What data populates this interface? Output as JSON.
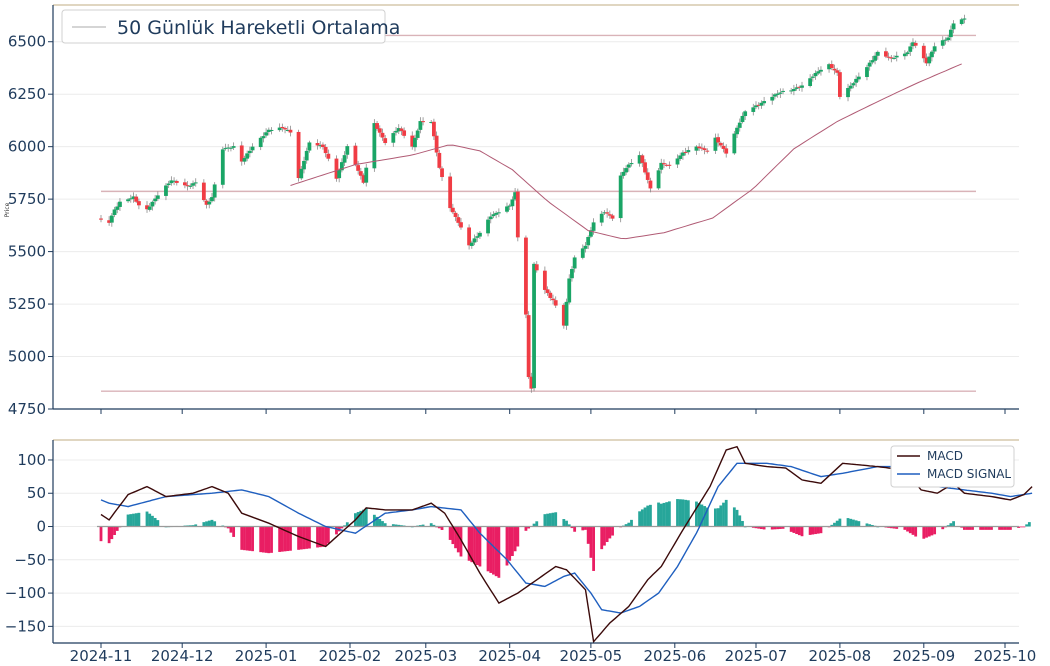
{
  "chart_data": [
    {
      "type": "candlestick",
      "ylabel": "Price",
      "ylim": [
        4750,
        6675
      ],
      "yticks": [
        4750,
        5000,
        5250,
        5500,
        5750,
        6000,
        6250,
        6500
      ],
      "legend": {
        "placement": "top-left",
        "label": "50 Günlük Hareketli Ortalama"
      },
      "grid": true,
      "colors": {
        "up": "#1aa566",
        "down": "#f03c44",
        "ma": "#b05a74",
        "hline": "#d9b3b8"
      },
      "horizontal_lines": [
        6530,
        5787,
        4835
      ],
      "price_anchors": [
        [
          "2024-11-01",
          5650
        ],
        [
          "2024-11-04",
          5640
        ],
        [
          "2024-11-06",
          5700
        ],
        [
          "2024-11-08",
          5735
        ],
        [
          "2024-11-11",
          5750
        ],
        [
          "2024-11-13",
          5760
        ],
        [
          "2024-11-15",
          5720
        ],
        [
          "2024-11-18",
          5700
        ],
        [
          "2024-11-22",
          5770
        ],
        [
          "2024-11-27",
          5840
        ],
        [
          "2024-12-03",
          5810
        ],
        [
          "2024-12-06",
          5830
        ],
        [
          "2024-12-10",
          5720
        ],
        [
          "2024-12-12",
          5760
        ],
        [
          "2024-12-16",
          5990
        ],
        [
          "2024-12-20",
          6000
        ],
        [
          "2024-12-23",
          5930
        ],
        [
          "2024-12-27",
          6000
        ],
        [
          "2025-01-02",
          6080
        ],
        [
          "2025-01-07",
          6090
        ],
        [
          "2025-01-10",
          6070
        ],
        [
          "2025-01-13",
          5850
        ],
        [
          "2025-01-17",
          6020
        ],
        [
          "2025-01-22",
          6000
        ],
        [
          "2025-01-27",
          5850
        ],
        [
          "2025-01-31",
          6000
        ],
        [
          "2025-02-06",
          5830
        ],
        [
          "2025-02-10",
          6110
        ],
        [
          "2025-02-14",
          6020
        ],
        [
          "2025-02-19",
          6090
        ],
        [
          "2025-02-24",
          6000
        ],
        [
          "2025-02-27",
          6120
        ],
        [
          "2025-03-03",
          6120
        ],
        [
          "2025-03-06",
          5900
        ],
        [
          "2025-03-10",
          5710
        ],
        [
          "2025-03-13",
          5640
        ],
        [
          "2025-03-17",
          5530
        ],
        [
          "2025-03-21",
          5590
        ],
        [
          "2025-03-25",
          5670
        ],
        [
          "2025-03-28",
          5690
        ],
        [
          "2025-04-01",
          5720
        ],
        [
          "2025-04-03",
          5780
        ],
        [
          "2025-04-04",
          5570
        ],
        [
          "2025-04-07",
          5200
        ],
        [
          "2025-04-08",
          4900
        ],
        [
          "2025-04-09",
          4850
        ],
        [
          "2025-04-10",
          5440
        ],
        [
          "2025-04-14",
          5320
        ],
        [
          "2025-04-16",
          5280
        ],
        [
          "2025-04-17",
          5270
        ],
        [
          "2025-04-21",
          5150
        ],
        [
          "2025-04-23",
          5370
        ],
        [
          "2025-04-25",
          5470
        ],
        [
          "2025-04-29",
          5530
        ],
        [
          "2025-05-02",
          5640
        ],
        [
          "2025-05-06",
          5690
        ],
        [
          "2025-05-09",
          5660
        ],
        [
          "2025-05-12",
          5860
        ],
        [
          "2025-05-14",
          5900
        ],
        [
          "2025-05-19",
          5960
        ],
        [
          "2025-05-23",
          5800
        ],
        [
          "2025-05-27",
          5920
        ],
        [
          "2025-05-30",
          5910
        ],
        [
          "2025-06-04",
          5970
        ],
        [
          "2025-06-09",
          6000
        ],
        [
          "2025-06-13",
          5980
        ],
        [
          "2025-06-16",
          6040
        ],
        [
          "2025-06-20",
          5970
        ],
        [
          "2025-06-24",
          6090
        ],
        [
          "2025-06-27",
          6170
        ],
        [
          "2025-07-02",
          6200
        ],
        [
          "2025-07-07",
          6240
        ],
        [
          "2025-07-10",
          6260
        ],
        [
          "2025-07-14",
          6270
        ],
        [
          "2025-07-18",
          6290
        ],
        [
          "2025-07-24",
          6360
        ],
        [
          "2025-07-28",
          6390
        ],
        [
          "2025-07-31",
          6350
        ],
        [
          "2025-08-01",
          6240
        ],
        [
          "2025-08-05",
          6290
        ],
        [
          "2025-08-11",
          6380
        ],
        [
          "2025-08-15",
          6450
        ],
        [
          "2025-08-20",
          6420
        ],
        [
          "2025-08-26",
          6450
        ],
        [
          "2025-08-28",
          6500
        ],
        [
          "2025-09-02",
          6400
        ],
        [
          "2025-09-05",
          6480
        ],
        [
          "2025-09-10",
          6520
        ],
        [
          "2025-09-12",
          6590
        ],
        [
          "2025-09-16",
          6610
        ]
      ],
      "ma50_anchors": [
        [
          "2025-01-10",
          5815
        ],
        [
          "2025-02-03",
          5915
        ],
        [
          "2025-02-24",
          5960
        ],
        [
          "2025-03-10",
          6010
        ],
        [
          "2025-03-21",
          5980
        ],
        [
          "2025-04-02",
          5890
        ],
        [
          "2025-04-15",
          5740
        ],
        [
          "2025-04-30",
          5600
        ],
        [
          "2025-05-13",
          5560
        ],
        [
          "2025-05-28",
          5590
        ],
        [
          "2025-06-15",
          5660
        ],
        [
          "2025-06-30",
          5800
        ],
        [
          "2025-07-15",
          5990
        ],
        [
          "2025-07-31",
          6120
        ],
        [
          "2025-08-15",
          6215
        ],
        [
          "2025-08-29",
          6300
        ],
        [
          "2025-09-16",
          6400
        ]
      ]
    },
    {
      "type": "line+bar",
      "ylim": [
        -175,
        130
      ],
      "yticks": [
        -150,
        -100,
        -50,
        0,
        50,
        100
      ],
      "xticks": [
        "2024-11",
        "2024-12",
        "2025-01",
        "2025-02",
        "2025-03",
        "2025-04",
        "2025-05",
        "2025-06",
        "2025-07",
        "2025-08",
        "2025-09",
        "2025-10"
      ],
      "legend": {
        "placement": "top-right"
      },
      "grid": true,
      "series": [
        {
          "name": "MACD",
          "color": "#3b0a0a",
          "anchors": [
            [
              "2024-11-01",
              18
            ],
            [
              "2024-11-04",
              10
            ],
            [
              "2024-11-11",
              48
            ],
            [
              "2024-11-18",
              60
            ],
            [
              "2024-11-25",
              45
            ],
            [
              "2024-12-05",
              50
            ],
            [
              "2024-12-12",
              60
            ],
            [
              "2024-12-18",
              50
            ],
            [
              "2024-12-23",
              20
            ],
            [
              "2025-01-02",
              5
            ],
            [
              "2025-01-13",
              -15
            ],
            [
              "2025-01-23",
              -30
            ],
            [
              "2025-02-03",
              10
            ],
            [
              "2025-02-07",
              28
            ],
            [
              "2025-02-14",
              25
            ],
            [
              "2025-02-24",
              25
            ],
            [
              "2025-03-03",
              35
            ],
            [
              "2025-03-08",
              20
            ],
            [
              "2025-03-14",
              -20
            ],
            [
              "2025-03-21",
              -70
            ],
            [
              "2025-03-28",
              -115
            ],
            [
              "2025-04-04",
              -100
            ],
            [
              "2025-04-11",
              -80
            ],
            [
              "2025-04-18",
              -60
            ],
            [
              "2025-04-22",
              -65
            ],
            [
              "2025-04-29",
              -95
            ],
            [
              "2025-05-02",
              -173
            ],
            [
              "2025-05-08",
              -145
            ],
            [
              "2025-05-15",
              -120
            ],
            [
              "2025-05-22",
              -80
            ],
            [
              "2025-05-27",
              -60
            ],
            [
              "2025-06-04",
              -5
            ],
            [
              "2025-06-14",
              60
            ],
            [
              "2025-06-20",
              115
            ],
            [
              "2025-06-24",
              120
            ],
            [
              "2025-06-27",
              95
            ],
            [
              "2025-07-05",
              90
            ],
            [
              "2025-07-12",
              88
            ],
            [
              "2025-07-18",
              70
            ],
            [
              "2025-07-25",
              65
            ],
            [
              "2025-08-02",
              95
            ],
            [
              "2025-08-15",
              90
            ],
            [
              "2025-08-25",
              85
            ],
            [
              "2025-08-31",
              55
            ],
            [
              "2025-09-06",
              50
            ],
            [
              "2025-09-12",
              65
            ],
            [
              "2025-09-16",
              50
            ],
            [
              "2025-09-26",
              45
            ],
            [
              "2025-10-03",
              40
            ],
            [
              "2025-10-08",
              48
            ],
            [
              "2025-10-11",
              60
            ]
          ]
        },
        {
          "name": "MACD SIGNAL",
          "color": "#1f5fbf",
          "anchors": [
            [
              "2024-11-01",
              40
            ],
            [
              "2024-11-04",
              35
            ],
            [
              "2024-11-11",
              30
            ],
            [
              "2024-11-25",
              45
            ],
            [
              "2024-12-12",
              50
            ],
            [
              "2024-12-23",
              55
            ],
            [
              "2025-01-02",
              45
            ],
            [
              "2025-01-13",
              20
            ],
            [
              "2025-01-23",
              0
            ],
            [
              "2025-02-03",
              -10
            ],
            [
              "2025-02-14",
              20
            ],
            [
              "2025-02-24",
              25
            ],
            [
              "2025-03-03",
              30
            ],
            [
              "2025-03-14",
              25
            ],
            [
              "2025-03-21",
              -10
            ],
            [
              "2025-03-31",
              -50
            ],
            [
              "2025-04-07",
              -85
            ],
            [
              "2025-04-14",
              -90
            ],
            [
              "2025-04-21",
              -75
            ],
            [
              "2025-04-25",
              -70
            ],
            [
              "2025-05-01",
              -100
            ],
            [
              "2025-05-05",
              -125
            ],
            [
              "2025-05-12",
              -130
            ],
            [
              "2025-05-19",
              -120
            ],
            [
              "2025-05-26",
              -100
            ],
            [
              "2025-06-02",
              -60
            ],
            [
              "2025-06-09",
              -10
            ],
            [
              "2025-06-17",
              60
            ],
            [
              "2025-06-24",
              95
            ],
            [
              "2025-07-05",
              95
            ],
            [
              "2025-07-14",
              90
            ],
            [
              "2025-07-25",
              75
            ],
            [
              "2025-08-02",
              80
            ],
            [
              "2025-08-15",
              90
            ],
            [
              "2025-08-25",
              90
            ],
            [
              "2025-08-31",
              75
            ],
            [
              "2025-09-06",
              60
            ],
            [
              "2025-09-16",
              55
            ],
            [
              "2025-09-26",
              50
            ],
            [
              "2025-10-03",
              45
            ],
            [
              "2025-10-11",
              50
            ]
          ]
        }
      ],
      "histogram": {
        "colors": {
          "positive": "#27a69a",
          "negative": "#e91e63"
        }
      }
    }
  ]
}
